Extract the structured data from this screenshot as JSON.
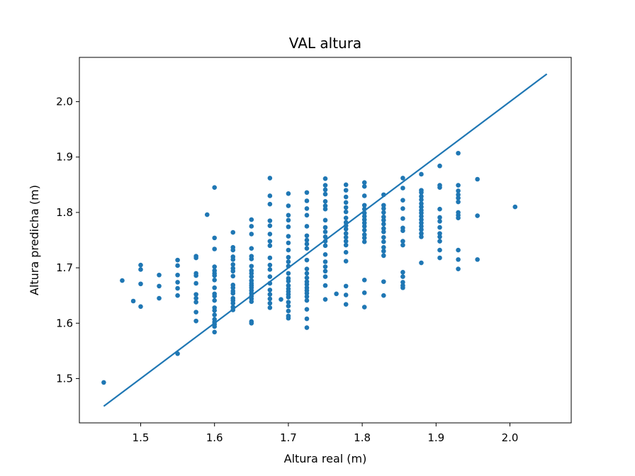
{
  "chart_data": {
    "type": "scatter",
    "title": "VAL altura",
    "xlabel": "Altura real (m)",
    "ylabel": "Altura predicha (m)",
    "xlim": [
      1.417,
      2.083
    ],
    "ylim": [
      1.42,
      2.08
    ],
    "xticks": [
      "1.5",
      "1.6",
      "1.7",
      "1.8",
      "1.9",
      "2.0"
    ],
    "yticks": [
      "1.5",
      "1.6",
      "1.7",
      "1.8",
      "1.9",
      "2.0"
    ],
    "grid": false,
    "legend": "none",
    "color": "#1f77b4",
    "identity_line": {
      "x": [
        1.45,
        2.05
      ],
      "y": [
        1.45,
        2.05
      ]
    },
    "points": [
      [
        1.45,
        1.493
      ],
      [
        1.475,
        1.677
      ],
      [
        1.49,
        1.64
      ],
      [
        1.5,
        1.705
      ],
      [
        1.5,
        1.697
      ],
      [
        1.5,
        1.671
      ],
      [
        1.5,
        1.63
      ],
      [
        1.525,
        1.687
      ],
      [
        1.525,
        1.667
      ],
      [
        1.525,
        1.645
      ],
      [
        1.55,
        1.714
      ],
      [
        1.55,
        1.704
      ],
      [
        1.55,
        1.687
      ],
      [
        1.55,
        1.674
      ],
      [
        1.55,
        1.663
      ],
      [
        1.55,
        1.65
      ],
      [
        1.55,
        1.545
      ],
      [
        1.575,
        1.721
      ],
      [
        1.575,
        1.718
      ],
      [
        1.575,
        1.69
      ],
      [
        1.575,
        1.686
      ],
      [
        1.575,
        1.672
      ],
      [
        1.575,
        1.652
      ],
      [
        1.575,
        1.645
      ],
      [
        1.575,
        1.638
      ],
      [
        1.575,
        1.62
      ],
      [
        1.575,
        1.604
      ],
      [
        1.59,
        1.796
      ],
      [
        1.6,
        1.845
      ],
      [
        1.6,
        1.754
      ],
      [
        1.6,
        1.734
      ],
      [
        1.6,
        1.702
      ],
      [
        1.6,
        1.695
      ],
      [
        1.6,
        1.69
      ],
      [
        1.6,
        1.686
      ],
      [
        1.6,
        1.678
      ],
      [
        1.6,
        1.664
      ],
      [
        1.6,
        1.653
      ],
      [
        1.6,
        1.649
      ],
      [
        1.6,
        1.641
      ],
      [
        1.6,
        1.628
      ],
      [
        1.6,
        1.623
      ],
      [
        1.6,
        1.615
      ],
      [
        1.6,
        1.607
      ],
      [
        1.6,
        1.602
      ],
      [
        1.6,
        1.598
      ],
      [
        1.6,
        1.594
      ],
      [
        1.6,
        1.584
      ],
      [
        1.625,
        1.764
      ],
      [
        1.625,
        1.737
      ],
      [
        1.625,
        1.732
      ],
      [
        1.625,
        1.72
      ],
      [
        1.625,
        1.715
      ],
      [
        1.625,
        1.706
      ],
      [
        1.625,
        1.699
      ],
      [
        1.625,
        1.694
      ],
      [
        1.625,
        1.685
      ],
      [
        1.625,
        1.669
      ],
      [
        1.625,
        1.664
      ],
      [
        1.625,
        1.658
      ],
      [
        1.625,
        1.654
      ],
      [
        1.625,
        1.645
      ],
      [
        1.625,
        1.641
      ],
      [
        1.625,
        1.636
      ],
      [
        1.625,
        1.629
      ],
      [
        1.625,
        1.624
      ],
      [
        1.65,
        1.787
      ],
      [
        1.65,
        1.775
      ],
      [
        1.65,
        1.761
      ],
      [
        1.65,
        1.735
      ],
      [
        1.65,
        1.721
      ],
      [
        1.65,
        1.716
      ],
      [
        1.65,
        1.703
      ],
      [
        1.65,
        1.695
      ],
      [
        1.65,
        1.69
      ],
      [
        1.65,
        1.684
      ],
      [
        1.65,
        1.677
      ],
      [
        1.65,
        1.672
      ],
      [
        1.65,
        1.668
      ],
      [
        1.65,
        1.664
      ],
      [
        1.65,
        1.659
      ],
      [
        1.65,
        1.654
      ],
      [
        1.65,
        1.649
      ],
      [
        1.65,
        1.644
      ],
      [
        1.65,
        1.639
      ],
      [
        1.65,
        1.603
      ],
      [
        1.65,
        1.6
      ],
      [
        1.675,
        1.862
      ],
      [
        1.675,
        1.83
      ],
      [
        1.675,
        1.815
      ],
      [
        1.675,
        1.785
      ],
      [
        1.675,
        1.776
      ],
      [
        1.675,
        1.761
      ],
      [
        1.675,
        1.748
      ],
      [
        1.675,
        1.74
      ],
      [
        1.675,
        1.718
      ],
      [
        1.675,
        1.705
      ],
      [
        1.675,
        1.697
      ],
      [
        1.675,
        1.684
      ],
      [
        1.675,
        1.672
      ],
      [
        1.675,
        1.66
      ],
      [
        1.675,
        1.652
      ],
      [
        1.675,
        1.644
      ],
      [
        1.675,
        1.636
      ],
      [
        1.675,
        1.628
      ],
      [
        1.69,
        1.643
      ],
      [
        1.7,
        1.834
      ],
      [
        1.7,
        1.812
      ],
      [
        1.7,
        1.795
      ],
      [
        1.7,
        1.786
      ],
      [
        1.7,
        1.774
      ],
      [
        1.7,
        1.757
      ],
      [
        1.7,
        1.745
      ],
      [
        1.7,
        1.732
      ],
      [
        1.7,
        1.719
      ],
      [
        1.7,
        1.711
      ],
      [
        1.7,
        1.703
      ],
      [
        1.7,
        1.69
      ],
      [
        1.7,
        1.681
      ],
      [
        1.7,
        1.676
      ],
      [
        1.7,
        1.668
      ],
      [
        1.7,
        1.662
      ],
      [
        1.7,
        1.657
      ],
      [
        1.7,
        1.652
      ],
      [
        1.7,
        1.647
      ],
      [
        1.7,
        1.638
      ],
      [
        1.7,
        1.631
      ],
      [
        1.7,
        1.622
      ],
      [
        1.7,
        1.613
      ],
      [
        1.7,
        1.609
      ],
      [
        1.725,
        1.836
      ],
      [
        1.725,
        1.821
      ],
      [
        1.725,
        1.807
      ],
      [
        1.725,
        1.795
      ],
      [
        1.725,
        1.775
      ],
      [
        1.725,
        1.758
      ],
      [
        1.725,
        1.75
      ],
      [
        1.725,
        1.743
      ],
      [
        1.725,
        1.735
      ],
      [
        1.725,
        1.714
      ],
      [
        1.725,
        1.698
      ],
      [
        1.725,
        1.69
      ],
      [
        1.725,
        1.682
      ],
      [
        1.725,
        1.675
      ],
      [
        1.725,
        1.67
      ],
      [
        1.725,
        1.664
      ],
      [
        1.725,
        1.659
      ],
      [
        1.725,
        1.654
      ],
      [
        1.725,
        1.648
      ],
      [
        1.725,
        1.641
      ],
      [
        1.725,
        1.625
      ],
      [
        1.725,
        1.608
      ],
      [
        1.725,
        1.592
      ],
      [
        1.75,
        1.861
      ],
      [
        1.75,
        1.849
      ],
      [
        1.75,
        1.841
      ],
      [
        1.75,
        1.833
      ],
      [
        1.75,
        1.82
      ],
      [
        1.75,
        1.812
      ],
      [
        1.75,
        1.806
      ],
      [
        1.75,
        1.786
      ],
      [
        1.75,
        1.773
      ],
      [
        1.75,
        1.765
      ],
      [
        1.75,
        1.756
      ],
      [
        1.75,
        1.748
      ],
      [
        1.75,
        1.74
      ],
      [
        1.75,
        1.724
      ],
      [
        1.75,
        1.711
      ],
      [
        1.75,
        1.702
      ],
      [
        1.75,
        1.694
      ],
      [
        1.75,
        1.684
      ],
      [
        1.75,
        1.668
      ],
      [
        1.75,
        1.643
      ],
      [
        1.765,
        1.653
      ],
      [
        1.778,
        1.85
      ],
      [
        1.778,
        1.84
      ],
      [
        1.778,
        1.828
      ],
      [
        1.778,
        1.818
      ],
      [
        1.778,
        1.809
      ],
      [
        1.778,
        1.801
      ],
      [
        1.778,
        1.79
      ],
      [
        1.778,
        1.782
      ],
      [
        1.778,
        1.776
      ],
      [
        1.778,
        1.77
      ],
      [
        1.778,
        1.762
      ],
      [
        1.778,
        1.755
      ],
      [
        1.778,
        1.748
      ],
      [
        1.778,
        1.741
      ],
      [
        1.778,
        1.728
      ],
      [
        1.778,
        1.712
      ],
      [
        1.778,
        1.667
      ],
      [
        1.778,
        1.651
      ],
      [
        1.778,
        1.634
      ],
      [
        1.803,
        1.854
      ],
      [
        1.803,
        1.847
      ],
      [
        1.803,
        1.83
      ],
      [
        1.803,
        1.813
      ],
      [
        1.803,
        1.806
      ],
      [
        1.803,
        1.799
      ],
      [
        1.803,
        1.793
      ],
      [
        1.803,
        1.787
      ],
      [
        1.803,
        1.781
      ],
      [
        1.803,
        1.775
      ],
      [
        1.803,
        1.768
      ],
      [
        1.803,
        1.76
      ],
      [
        1.803,
        1.754
      ],
      [
        1.803,
        1.747
      ],
      [
        1.803,
        1.678
      ],
      [
        1.803,
        1.655
      ],
      [
        1.803,
        1.629
      ],
      [
        1.829,
        1.832
      ],
      [
        1.829,
        1.813
      ],
      [
        1.829,
        1.807
      ],
      [
        1.829,
        1.8
      ],
      [
        1.829,
        1.792
      ],
      [
        1.829,
        1.786
      ],
      [
        1.829,
        1.779
      ],
      [
        1.829,
        1.771
      ],
      [
        1.829,
        1.765
      ],
      [
        1.829,
        1.755
      ],
      [
        1.829,
        1.747
      ],
      [
        1.829,
        1.737
      ],
      [
        1.829,
        1.73
      ],
      [
        1.829,
        1.722
      ],
      [
        1.829,
        1.675
      ],
      [
        1.829,
        1.65
      ],
      [
        1.855,
        1.862
      ],
      [
        1.855,
        1.844
      ],
      [
        1.855,
        1.822
      ],
      [
        1.855,
        1.807
      ],
      [
        1.855,
        1.789
      ],
      [
        1.855,
        1.772
      ],
      [
        1.855,
        1.767
      ],
      [
        1.855,
        1.748
      ],
      [
        1.855,
        1.741
      ],
      [
        1.855,
        1.692
      ],
      [
        1.855,
        1.684
      ],
      [
        1.855,
        1.674
      ],
      [
        1.855,
        1.668
      ],
      [
        1.855,
        1.664
      ],
      [
        1.88,
        1.869
      ],
      [
        1.88,
        1.84
      ],
      [
        1.88,
        1.836
      ],
      [
        1.88,
        1.829
      ],
      [
        1.88,
        1.823
      ],
      [
        1.88,
        1.816
      ],
      [
        1.88,
        1.81
      ],
      [
        1.88,
        1.804
      ],
      [
        1.88,
        1.799
      ],
      [
        1.88,
        1.793
      ],
      [
        1.88,
        1.787
      ],
      [
        1.88,
        1.781
      ],
      [
        1.88,
        1.775
      ],
      [
        1.88,
        1.769
      ],
      [
        1.88,
        1.762
      ],
      [
        1.88,
        1.756
      ],
      [
        1.88,
        1.709
      ],
      [
        1.905,
        1.884
      ],
      [
        1.905,
        1.849
      ],
      [
        1.905,
        1.845
      ],
      [
        1.905,
        1.806
      ],
      [
        1.905,
        1.791
      ],
      [
        1.905,
        1.784
      ],
      [
        1.905,
        1.773
      ],
      [
        1.905,
        1.762
      ],
      [
        1.905,
        1.756
      ],
      [
        1.905,
        1.748
      ],
      [
        1.905,
        1.732
      ],
      [
        1.905,
        1.718
      ],
      [
        1.93,
        1.907
      ],
      [
        1.93,
        1.849
      ],
      [
        1.93,
        1.839
      ],
      [
        1.93,
        1.832
      ],
      [
        1.93,
        1.826
      ],
      [
        1.93,
        1.819
      ],
      [
        1.93,
        1.8
      ],
      [
        1.93,
        1.795
      ],
      [
        1.93,
        1.79
      ],
      [
        1.93,
        1.732
      ],
      [
        1.93,
        1.715
      ],
      [
        1.93,
        1.698
      ],
      [
        1.956,
        1.86
      ],
      [
        1.956,
        1.794
      ],
      [
        1.956,
        1.715
      ],
      [
        2.007,
        1.81
      ]
    ]
  }
}
